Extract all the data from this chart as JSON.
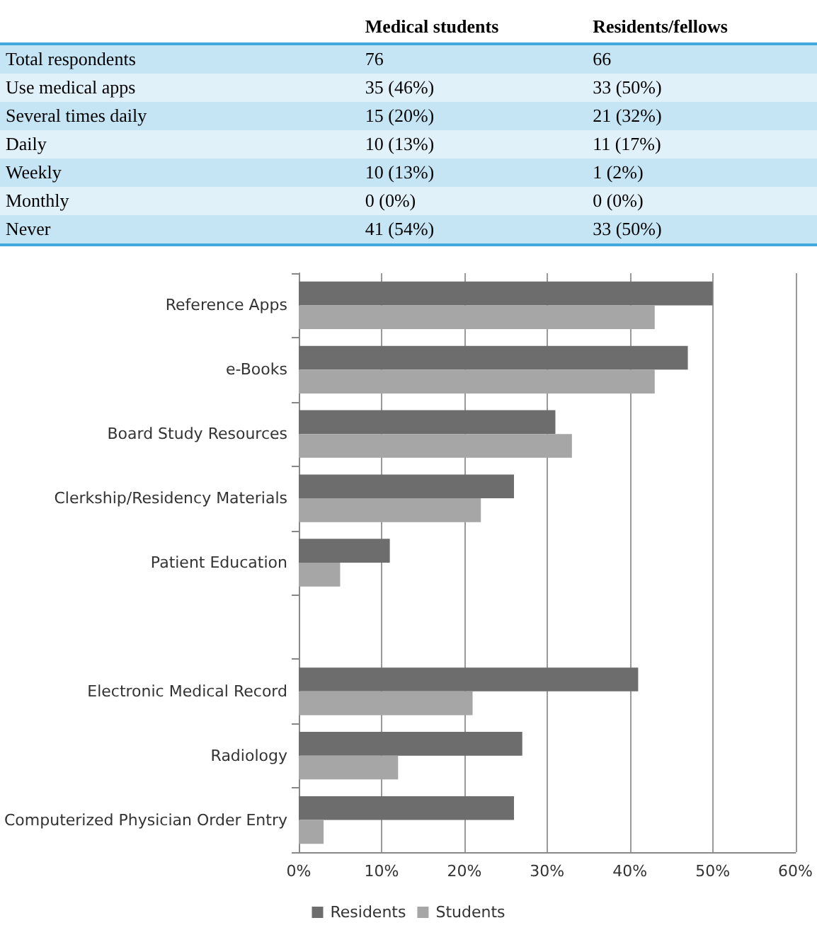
{
  "chart_data": [
    {
      "type": "other",
      "categories": [
        "Total respondents",
        "Use medical apps",
        "Several times daily",
        "Daily",
        "Weekly",
        "Monthly",
        "Never"
      ],
      "series": [
        {
          "name": "Medical students",
          "colors": [
            "#c5e5f5",
            "#e0f1fa",
            "#c5e5f5",
            "#e0f1fa",
            "#c5e5f5",
            "#e0f1fa",
            "#c5e5f5"
          ],
          "values": [
            76,
            35,
            15,
            10,
            10,
            0,
            41
          ],
          "value_labels": [
            "76",
            "35 (46%)",
            "15 (20%)",
            "10 (13%)",
            "10 (13%)",
            "0 (0%)",
            "41 (54%)"
          ]
        },
        {
          "name": "Residents/fellows",
          "colors": [
            "#c5e5f5",
            "#e0f1fa",
            "#c5e5f5",
            "#e0f1fa",
            "#c5e5f5",
            "#e0f1fa",
            "#c5e5f5"
          ],
          "values": [
            66,
            33,
            21,
            11,
            1,
            0,
            33
          ],
          "value_labels": [
            "66",
            "33 (50%)",
            "21 (32%)",
            "11 (17%)",
            "1 (2%)",
            "0 (0%)",
            "33 (50%)"
          ]
        }
      ]
    },
    {
      "type": "bar",
      "orientation": "horizontal",
      "categories": [
        "Reference Apps",
        "e-Books",
        "Board Study Resources",
        "Clerkship/Residency Materials",
        "Patient Education",
        null,
        "Electronic Medical Record",
        "Radiology",
        "Computerized Physician Order Entry"
      ],
      "series": [
        {
          "name": "Residents",
          "color": "#6d6d6d",
          "values": [
            50,
            47,
            31,
            26,
            11,
            null,
            41,
            27,
            26
          ]
        },
        {
          "name": "Students",
          "color": "#a6a6a6",
          "values": [
            43,
            43,
            33,
            22,
            5,
            null,
            21,
            12,
            3
          ]
        }
      ],
      "xlim": [
        0,
        60
      ],
      "xticks": [
        {
          "value": 0,
          "label": "0%"
        },
        {
          "value": 10,
          "label": "10%"
        },
        {
          "value": 20,
          "label": "20%"
        },
        {
          "value": 30,
          "label": "30%"
        },
        {
          "value": 40,
          "label": "40%"
        },
        {
          "value": 50,
          "label": "50%"
        },
        {
          "value": 60,
          "label": "60%"
        }
      ],
      "grid": "x",
      "legend": "bottom"
    }
  ]
}
